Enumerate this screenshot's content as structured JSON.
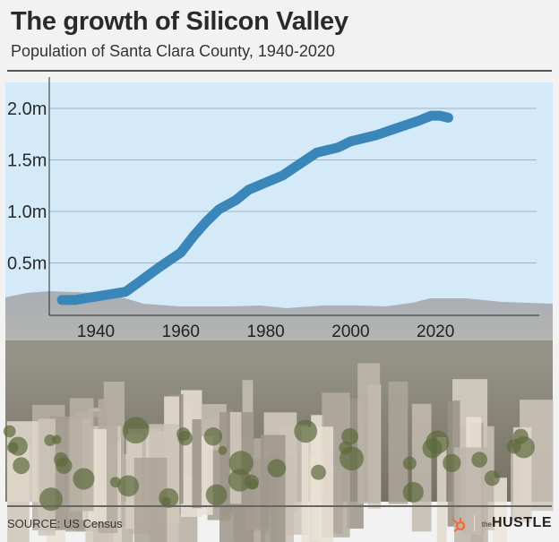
{
  "header": {
    "title": "The growth of Silicon Valley",
    "subtitle": "Population of Santa Clara County, 1940-2020"
  },
  "footer": {
    "source": "SOURCE: US Census",
    "brand_small": "the",
    "brand": "HUSTLE",
    "brand_icon": "hubspot-sprocket-icon"
  },
  "colors": {
    "line": "#3a86b9",
    "sky": "#d4eaf8",
    "text": "#2a2a2a",
    "brand_orange": "#f26b3a"
  },
  "chart_data": {
    "type": "line",
    "title": "The growth of Silicon Valley",
    "subtitle": "Population of Santa Clara County, 1940-2020",
    "xlabel": "",
    "ylabel": "",
    "xlim": [
      1925,
      2026
    ],
    "ylim": [
      0,
      2.2
    ],
    "x_ticks": [
      1940,
      1960,
      1980,
      2000,
      2020
    ],
    "x_tick_labels": [
      "1940",
      "1960",
      "1980",
      "2000",
      "2020"
    ],
    "y_ticks": [
      0.5,
      1.0,
      1.5,
      2.0
    ],
    "y_tick_labels": [
      "0.5m",
      "1.0m",
      "1.5m",
      "2.0m"
    ],
    "grid": "horizontal",
    "series": [
      {
        "x": [
          1932,
          1935,
          1938,
          1944,
          1947,
          1950,
          1955,
          1960,
          1963,
          1966,
          1969,
          1973,
          1976,
          1980,
          1984,
          1988,
          1992,
          1997,
          2000,
          2006,
          2011,
          2016,
          2019,
          2021,
          2023
        ],
        "y": [
          0.14,
          0.14,
          0.16,
          0.2,
          0.22,
          0.31,
          0.46,
          0.6,
          0.76,
          0.9,
          1.02,
          1.11,
          1.21,
          1.28,
          1.35,
          1.46,
          1.57,
          1.62,
          1.68,
          1.74,
          1.81,
          1.88,
          1.93,
          1.93,
          1.91
        ]
      }
    ]
  }
}
